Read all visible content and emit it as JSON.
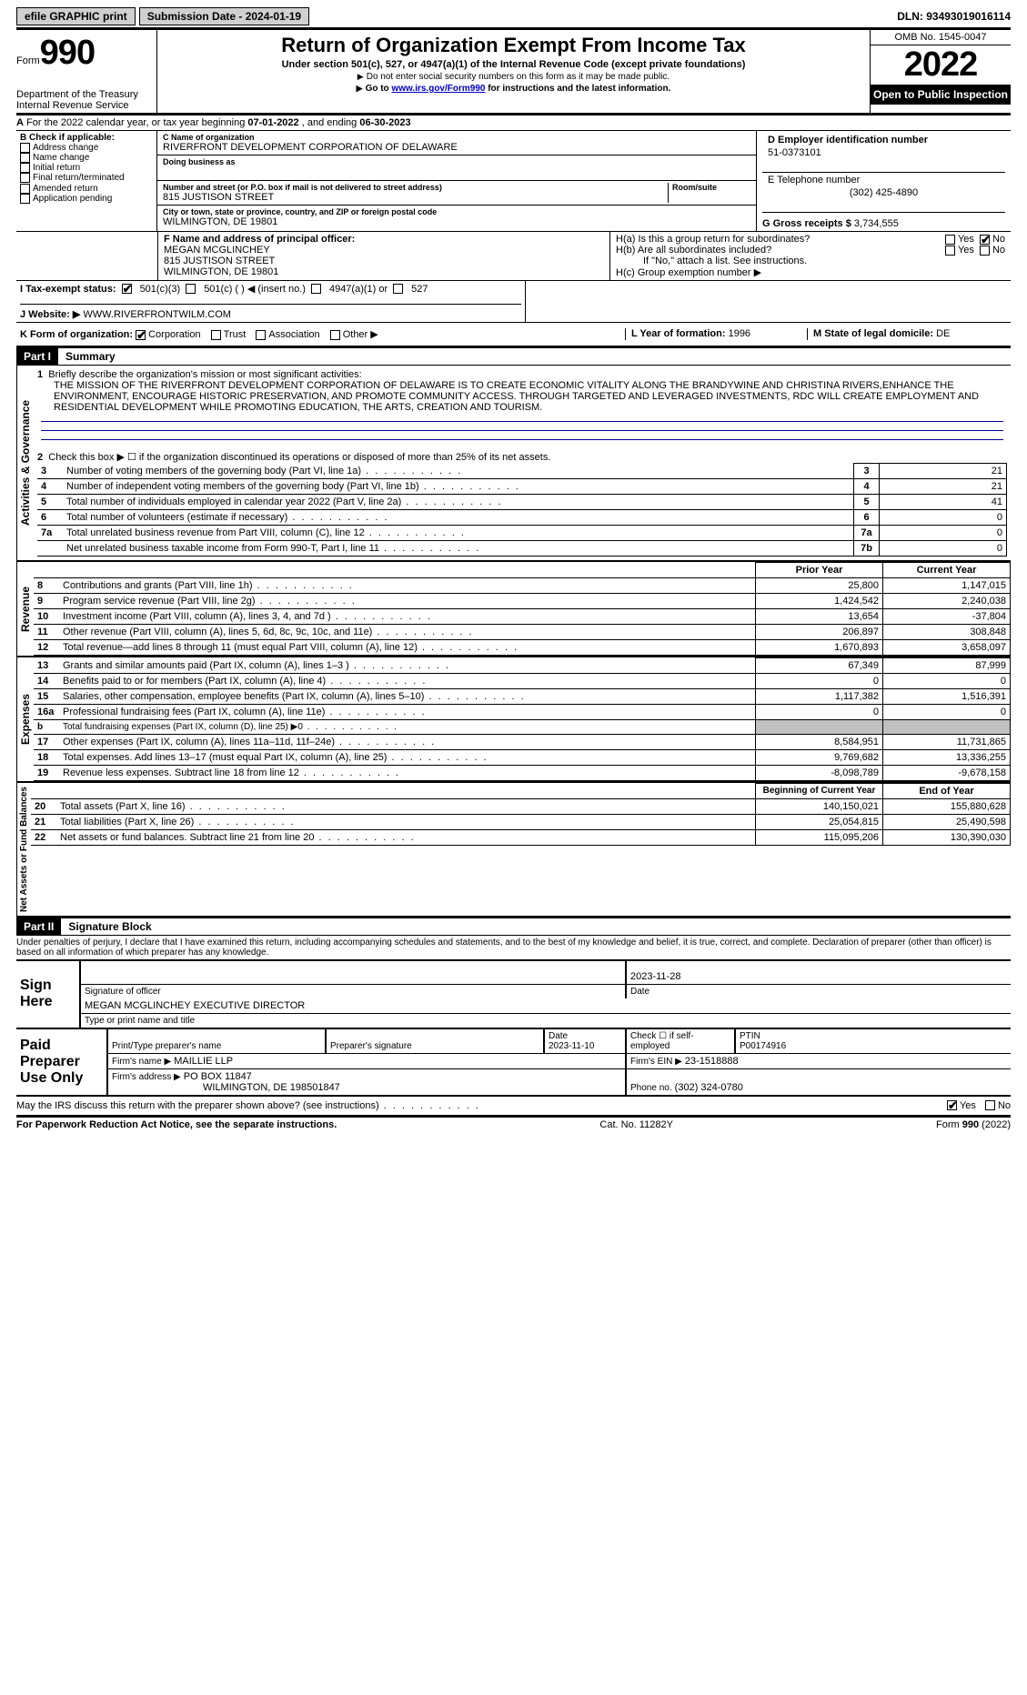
{
  "topbar": {
    "efile": "efile GRAPHIC print",
    "submission": "Submission Date - 2024-01-19",
    "dln": "DLN: 93493019016114"
  },
  "header": {
    "form_word": "Form",
    "form_num": "990",
    "dept": "Department of the Treasury",
    "irs": "Internal Revenue Service",
    "title": "Return of Organization Exempt From Income Tax",
    "sub1": "Under section 501(c), 527, or 4947(a)(1) of the Internal Revenue Code (except private foundations)",
    "sub2": "Do not enter social security numbers on this form as it may be made public.",
    "sub3_pre": "Go to ",
    "sub3_link": "www.irs.gov/Form990",
    "sub3_post": " for instructions and the latest information.",
    "omb": "OMB No. 1545-0047",
    "year": "2022",
    "open": "Open to Public Inspection"
  },
  "row_a": {
    "label": "A",
    "text_pre": "For the 2022 calendar year, or tax year beginning ",
    "begin": "07-01-2022",
    "mid": " , and ending ",
    "end": "06-30-2023"
  },
  "box_b": {
    "label": "B Check if applicable:",
    "opts": [
      "Address change",
      "Name change",
      "Initial return",
      "Final return/terminated",
      "Amended return",
      "Application pending"
    ]
  },
  "box_c": {
    "name_lbl": "C Name of organization",
    "name": "RIVERFRONT DEVELOPMENT CORPORATION OF DELAWARE",
    "dba_lbl": "Doing business as",
    "addr_lbl": "Number and street (or P.O. box if mail is not delivered to street address)",
    "addr": "815 JUSTISON STREET",
    "room_lbl": "Room/suite",
    "city_lbl": "City or town, state or province, country, and ZIP or foreign postal code",
    "city": "WILMINGTON, DE  19801"
  },
  "box_d": {
    "lbl": "D Employer identification number",
    "val": "51-0373101"
  },
  "box_e": {
    "lbl": "E Telephone number",
    "val": "(302) 425-4890"
  },
  "box_g": {
    "lbl": "G Gross receipts $",
    "val": "3,734,555"
  },
  "box_f": {
    "lbl": "F  Name and address of principal officer:",
    "name": "MEGAN MCGLINCHEY",
    "addr1": "815 JUSTISON STREET",
    "addr2": "WILMINGTON, DE  19801"
  },
  "box_h": {
    "ha": "H(a)  Is this a group return for subordinates?",
    "hb": "H(b)  Are all subordinates included?",
    "hb_note": "If \"No,\" attach a list. See instructions.",
    "hc": "H(c)  Group exemption number ▶",
    "yes": "Yes",
    "no": "No"
  },
  "box_i": {
    "lbl": "I  Tax-exempt status:",
    "o1": "501(c)(3)",
    "o2": "501(c) (  ) ◀ (insert no.)",
    "o3": "4947(a)(1) or",
    "o4": "527"
  },
  "box_j": {
    "lbl": "J  Website: ▶",
    "val": "WWW.RIVERFRONTWILM.COM"
  },
  "box_k": {
    "lbl": "K Form of organization:",
    "o1": "Corporation",
    "o2": "Trust",
    "o3": "Association",
    "o4": "Other ▶"
  },
  "box_l": {
    "lbl": "L Year of formation:",
    "val": "1996"
  },
  "box_m": {
    "lbl": "M State of legal domicile:",
    "val": "DE"
  },
  "part1": {
    "num": "Part I",
    "title": "Summary"
  },
  "summary": {
    "l1_lbl": "1",
    "l1_text": "Briefly describe the organization's mission or most significant activities:",
    "mission": "THE MISSION OF THE RIVERFRONT DEVELOPMENT CORPORATION OF DELAWARE IS TO CREATE ECONOMIC VITALITY ALONG THE BRANDYWINE AND CHRISTINA RIVERS,ENHANCE THE ENVIRONMENT, ENCOURAGE HISTORIC PRESERVATION, AND PROMOTE COMMUNITY ACCESS. THROUGH TARGETED AND LEVERAGED INVESTMENTS, RDC WILL CREATE EMPLOYMENT AND RESIDENTIAL DEVELOPMENT WHILE PROMOTING EDUCATION, THE ARTS, CREATION AND TOURISM.",
    "l2": "Check this box ▶ ☐ if the organization discontinued its operations or disposed of more than 25% of its net assets.",
    "gov_rows": [
      {
        "n": "3",
        "d": "Number of voting members of the governing body (Part VI, line 1a)",
        "rn": "3",
        "v": "21"
      },
      {
        "n": "4",
        "d": "Number of independent voting members of the governing body (Part VI, line 1b)",
        "rn": "4",
        "v": "21"
      },
      {
        "n": "5",
        "d": "Total number of individuals employed in calendar year 2022 (Part V, line 2a)",
        "rn": "5",
        "v": "41"
      },
      {
        "n": "6",
        "d": "Total number of volunteers (estimate if necessary)",
        "rn": "6",
        "v": "0"
      },
      {
        "n": "7a",
        "d": "Total unrelated business revenue from Part VIII, column (C), line 12",
        "rn": "7a",
        "v": "0"
      },
      {
        "n": "",
        "d": "Net unrelated business taxable income from Form 990-T, Part I, line 11",
        "rn": "7b",
        "v": "0"
      }
    ],
    "col_prior": "Prior Year",
    "col_current": "Current Year",
    "rev_rows": [
      {
        "n": "8",
        "d": "Contributions and grants (Part VIII, line 1h)",
        "p": "25,800",
        "c": "1,147,015"
      },
      {
        "n": "9",
        "d": "Program service revenue (Part VIII, line 2g)",
        "p": "1,424,542",
        "c": "2,240,038"
      },
      {
        "n": "10",
        "d": "Investment income (Part VIII, column (A), lines 3, 4, and 7d )",
        "p": "13,654",
        "c": "-37,804"
      },
      {
        "n": "11",
        "d": "Other revenue (Part VIII, column (A), lines 5, 6d, 8c, 9c, 10c, and 11e)",
        "p": "206,897",
        "c": "308,848"
      },
      {
        "n": "12",
        "d": "Total revenue—add lines 8 through 11 (must equal Part VIII, column (A), line 12)",
        "p": "1,670,893",
        "c": "3,658,097"
      }
    ],
    "exp_rows": [
      {
        "n": "13",
        "d": "Grants and similar amounts paid (Part IX, column (A), lines 1–3 )",
        "p": "67,349",
        "c": "87,999"
      },
      {
        "n": "14",
        "d": "Benefits paid to or for members (Part IX, column (A), line 4)",
        "p": "0",
        "c": "0"
      },
      {
        "n": "15",
        "d": "Salaries, other compensation, employee benefits (Part IX, column (A), lines 5–10)",
        "p": "1,117,382",
        "c": "1,516,391"
      },
      {
        "n": "16a",
        "d": "Professional fundraising fees (Part IX, column (A), line 11e)",
        "p": "0",
        "c": "0"
      },
      {
        "n": "b",
        "d": "Total fundraising expenses (Part IX, column (D), line 25) ▶0",
        "p": "GRAY",
        "c": "GRAY"
      },
      {
        "n": "17",
        "d": "Other expenses (Part IX, column (A), lines 11a–11d, 11f–24e)",
        "p": "8,584,951",
        "c": "11,731,865"
      },
      {
        "n": "18",
        "d": "Total expenses. Add lines 13–17 (must equal Part IX, column (A), line 25)",
        "p": "9,769,682",
        "c": "13,336,255"
      },
      {
        "n": "19",
        "d": "Revenue less expenses. Subtract line 18 from line 12",
        "p": "-8,098,789",
        "c": "-9,678,158"
      }
    ],
    "col_begin": "Beginning of Current Year",
    "col_end": "End of Year",
    "net_rows": [
      {
        "n": "20",
        "d": "Total assets (Part X, line 16)",
        "p": "140,150,021",
        "c": "155,880,628"
      },
      {
        "n": "21",
        "d": "Total liabilities (Part X, line 26)",
        "p": "25,054,815",
        "c": "25,490,598"
      },
      {
        "n": "22",
        "d": "Net assets or fund balances. Subtract line 21 from line 20",
        "p": "115,095,206",
        "c": "130,390,030"
      }
    ]
  },
  "vert_labels": {
    "gov": "Activities & Governance",
    "rev": "Revenue",
    "exp": "Expenses",
    "net": "Net Assets or Fund Balances"
  },
  "part2": {
    "num": "Part II",
    "title": "Signature Block"
  },
  "sig": {
    "decl": "Under penalties of perjury, I declare that I have examined this return, including accompanying schedules and statements, and to the best of my knowledge and belief, it is true, correct, and complete. Declaration of preparer (other than officer) is based on all information of which preparer has any knowledge.",
    "sign_here": "Sign Here",
    "sig_officer": "Signature of officer",
    "date1": "2023-11-28",
    "date_lbl": "Date",
    "typed": "MEGAN MCGLINCHEY  EXECUTIVE DIRECTOR",
    "typed_lbl": "Type or print name and title",
    "paid": "Paid Preparer Use Only",
    "prep_name_lbl": "Print/Type preparer's name",
    "prep_sig_lbl": "Preparer's signature",
    "date2_lbl": "Date",
    "date2": "2023-11-10",
    "check_self": "Check ☐ if self-employed",
    "ptin_lbl": "PTIN",
    "ptin": "P00174916",
    "firm_name_lbl": "Firm's name   ▶",
    "firm_name": "MAILLIE LLP",
    "firm_ein_lbl": "Firm's EIN ▶",
    "firm_ein": "23-1518888",
    "firm_addr_lbl": "Firm's address ▶",
    "firm_addr1": "PO BOX 11847",
    "firm_addr2": "WILMINGTON, DE  198501847",
    "phone_lbl": "Phone no.",
    "phone": "(302) 324-0780",
    "may_irs": "May the IRS discuss this return with the preparer shown above? (see instructions)",
    "yes": "Yes",
    "no": "No"
  },
  "footer": {
    "left": "For Paperwork Reduction Act Notice, see the separate instructions.",
    "mid": "Cat. No. 11282Y",
    "right_pre": "Form ",
    "right_bold": "990",
    "right_post": " (2022)"
  }
}
